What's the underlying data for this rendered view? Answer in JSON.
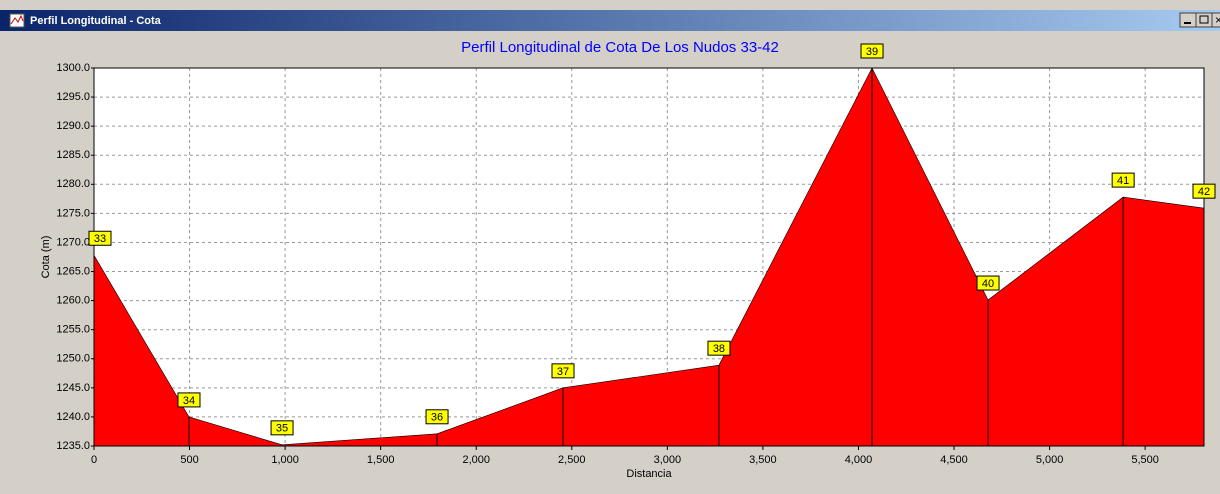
{
  "window": {
    "title": "Perfil Longitudinal - Cota"
  },
  "chart_data": {
    "type": "area",
    "title": "Perfil Longitudinal de Cota De Los Nudos 33-42",
    "x_label": "Distancia",
    "y_label": "Cota (m)",
    "x": [
      0,
      497,
      984,
      1795,
      2454,
      3270,
      4071,
      4678,
      5385,
      5808
    ],
    "values": [
      1267.8,
      1240.0,
      1235.2,
      1237.1,
      1245.0,
      1248.9,
      1300.0,
      1260.1,
      1277.8,
      1275.9
    ],
    "point_labels": [
      "33",
      "34",
      "35",
      "36",
      "37",
      "38",
      "39",
      "40",
      "41",
      "42"
    ],
    "color": "#ff0000",
    "xlim": [
      0,
      5808
    ],
    "ylim": [
      1235,
      1300
    ],
    "xticks": [
      0,
      500,
      {
        "value": 1000,
        "label": "1,000"
      },
      {
        "value": 1500,
        "label": "1,500"
      },
      {
        "value": 2000,
        "label": "2,000"
      },
      {
        "value": 2500,
        "label": "2,500"
      },
      {
        "value": 3000,
        "label": "3,000"
      },
      {
        "value": 3500,
        "label": "3,500"
      },
      {
        "value": 4000,
        "label": "4,000"
      },
      {
        "value": 4500,
        "label": "4,500"
      },
      {
        "value": 5000,
        "label": "5,000"
      },
      {
        "value": 5500,
        "label": "5,500"
      }
    ],
    "yticks": [
      {
        "value": 1235,
        "label": "1235.0"
      },
      {
        "value": 1240,
        "label": "1240.0"
      },
      {
        "value": 1245,
        "label": "1245.0"
      },
      {
        "value": 1250,
        "label": "1250.0"
      },
      {
        "value": 1255,
        "label": "1255.0"
      },
      {
        "value": 1260,
        "label": "1260.0"
      },
      {
        "value": 1265,
        "label": "1265.0"
      },
      {
        "value": 1270,
        "label": "1270.0"
      },
      {
        "value": 1275,
        "label": "1275.0"
      },
      {
        "value": 1280,
        "label": "1280.0"
      },
      {
        "value": 1285,
        "label": "1285.0"
      },
      {
        "value": 1290,
        "label": "1290.0"
      },
      {
        "value": 1295,
        "label": "1295.0"
      },
      {
        "value": 1300,
        "label": "1300.0"
      }
    ],
    "grid": true
  }
}
